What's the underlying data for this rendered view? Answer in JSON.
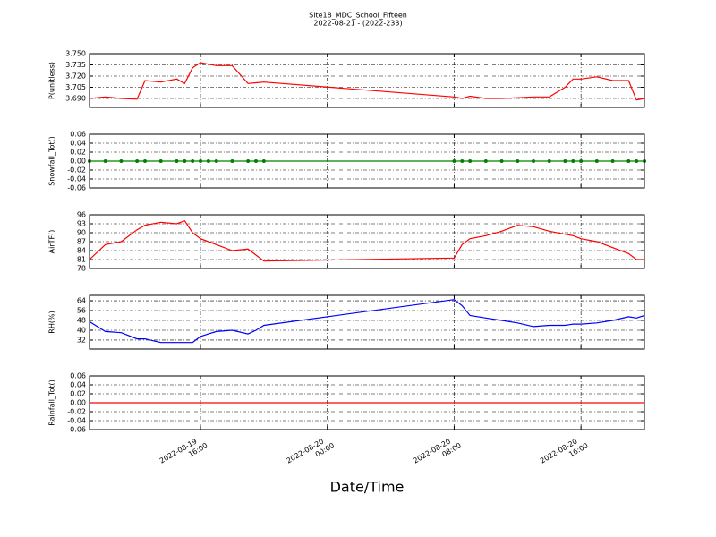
{
  "figure": {
    "title": "Site18_MDC_School_Fifteen",
    "subtitle": "2022-08-21 - (2022-233)",
    "xlabel": "Date/Time",
    "xlim": [
      "2022-08-19 09:00",
      "2022-08-20 20:00"
    ],
    "xticks": [
      "2022-08-19 16:00",
      "2022-08-20 00:00",
      "2022-08-20 08:00",
      "2022-08-20 16:00"
    ],
    "x": [
      "2022-08-19 09:00",
      "2022-08-19 10:00",
      "2022-08-19 11:00",
      "2022-08-19 12:00",
      "2022-08-19 12:30",
      "2022-08-19 13:30",
      "2022-08-19 14:30",
      "2022-08-19 15:00",
      "2022-08-19 15:30",
      "2022-08-19 16:00",
      "2022-08-19 16:30",
      "2022-08-19 17:00",
      "2022-08-19 18:00",
      "2022-08-19 19:00",
      "2022-08-19 19:30",
      "2022-08-19 20:00",
      "2022-08-20 08:00",
      "2022-08-20 08:30",
      "2022-08-20 09:00",
      "2022-08-20 10:00",
      "2022-08-20 11:00",
      "2022-08-20 12:00",
      "2022-08-20 13:00",
      "2022-08-20 14:00",
      "2022-08-20 15:00",
      "2022-08-20 15:30",
      "2022-08-20 16:00",
      "2022-08-20 17:00",
      "2022-08-20 18:00",
      "2022-08-20 19:00",
      "2022-08-20 19:30",
      "2022-08-20 20:00"
    ]
  },
  "chart_data": [
    {
      "type": "line",
      "ylabel": "P(unitless)",
      "ylim": [
        3.678,
        3.75
      ],
      "yticks": [
        {
          "value": 3.69,
          "label": "3.690"
        },
        3.705,
        {
          "value": 3.72,
          "label": "3.720"
        },
        3.735,
        {
          "value": 3.75,
          "label": "3.750"
        }
      ],
      "series": [
        {
          "color": "#ff0000",
          "values": [
            3.69,
            3.692,
            3.69,
            3.689,
            3.714,
            3.712,
            3.716,
            3.71,
            3.731,
            3.738,
            3.736,
            3.734,
            3.734,
            3.71,
            3.711,
            3.712,
            3.692,
            3.69,
            3.693,
            3.69,
            3.69,
            3.691,
            3.692,
            3.692,
            3.705,
            3.716,
            3.716,
            3.719,
            3.714,
            3.714,
            3.688,
            3.69
          ]
        }
      ]
    },
    {
      "type": "line",
      "markers": true,
      "ylabel": "Snowfall_Tot()",
      "ylim": [
        -0.06,
        0.06
      ],
      "yticks": [
        {
          "value": -0.06,
          "label": "-0.06"
        },
        {
          "value": -0.04,
          "label": "-0.04"
        },
        {
          "value": -0.02,
          "label": "-0.02"
        },
        {
          "value": 0,
          "label": "0.00"
        },
        {
          "value": 0.02,
          "label": "0.02"
        },
        {
          "value": 0.04,
          "label": "0.04"
        },
        {
          "value": 0.06,
          "label": "0.06"
        }
      ],
      "series": [
        {
          "color": "#008000",
          "values": [
            0,
            0,
            0,
            0,
            0,
            0,
            0,
            0,
            0,
            0,
            0,
            0,
            0,
            0,
            0,
            0,
            0,
            0,
            0,
            0,
            0,
            0,
            0,
            0,
            0,
            0,
            0,
            0,
            0,
            0,
            0,
            0
          ]
        }
      ]
    },
    {
      "type": "line",
      "ylabel": "AirTF()",
      "ylim": [
        78,
        96
      ],
      "yticks": [
        78,
        81,
        84,
        87,
        90,
        93,
        96
      ],
      "series": [
        {
          "color": "#ff0000",
          "values": [
            81,
            86,
            87,
            91,
            92.5,
            93.5,
            93,
            94,
            90,
            88,
            87,
            86,
            84,
            84.5,
            82.5,
            80.5,
            81.5,
            86,
            88,
            89,
            90.5,
            92.5,
            92,
            90.5,
            89.5,
            89,
            88,
            87,
            85,
            83,
            81,
            81
          ]
        }
      ]
    },
    {
      "type": "line",
      "ylabel": "RH(%)",
      "ylim": [
        24.7,
        68.4
      ],
      "yticks": [
        32,
        40,
        48,
        56,
        64
      ],
      "series": [
        {
          "color": "#0000ff",
          "values": [
            47,
            39,
            38,
            33,
            33,
            30,
            30,
            30,
            30,
            35,
            37,
            39,
            40,
            37,
            40,
            44,
            65,
            60,
            52,
            50,
            48,
            46,
            43,
            44,
            44,
            45,
            45,
            46,
            48,
            51,
            50,
            52
          ]
        }
      ]
    },
    {
      "type": "line",
      "ylabel": "Rainfall_Tot()",
      "ylim": [
        -0.06,
        0.06
      ],
      "yticks": [
        {
          "value": -0.06,
          "label": "-0.06"
        },
        {
          "value": -0.04,
          "label": "-0.04"
        },
        {
          "value": -0.02,
          "label": "-0.02"
        },
        {
          "value": 0,
          "label": "0.00"
        },
        {
          "value": 0.02,
          "label": "0.02"
        },
        {
          "value": 0.04,
          "label": "0.04"
        },
        {
          "value": 0.06,
          "label": "0.06"
        }
      ],
      "series": [
        {
          "color": "#ff0000",
          "values": [
            0,
            0,
            0,
            0,
            0,
            0,
            0,
            0,
            0,
            0,
            0,
            0,
            0,
            0,
            0,
            0,
            0,
            0,
            0,
            0,
            0,
            0,
            0,
            0,
            0,
            0,
            0,
            0,
            0,
            0,
            0,
            0
          ]
        }
      ]
    }
  ]
}
